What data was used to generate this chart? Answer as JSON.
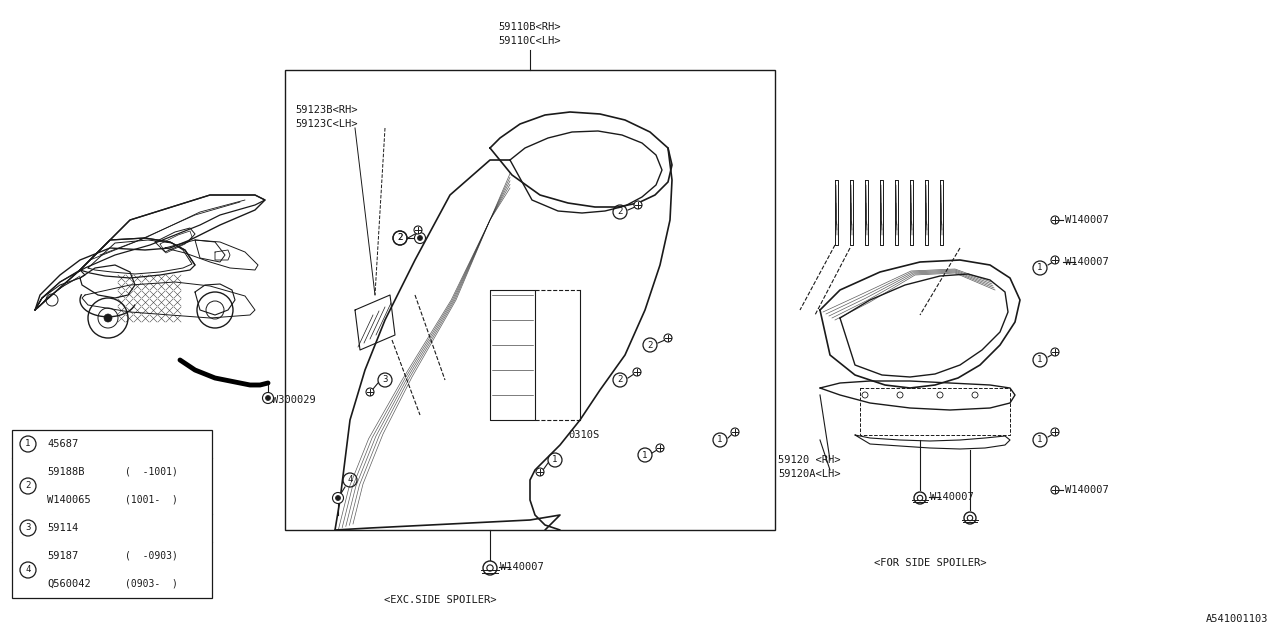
{
  "bg_color": "#ffffff",
  "line_color": "#1a1a1a",
  "diagram_id": "A541001103",
  "parts_table": [
    {
      "num": 1,
      "parts": [
        {
          "pn": "45687",
          "note": ""
        }
      ]
    },
    {
      "num": 2,
      "parts": [
        {
          "pn": "59188B",
          "note": "( -1001)"
        },
        {
          "pn": "W140065",
          "note": "(1001-  )"
        }
      ]
    },
    {
      "num": 3,
      "parts": [
        {
          "pn": "59114",
          "note": ""
        }
      ]
    },
    {
      "num": 4,
      "parts": [
        {
          "pn": "59187",
          "note": "( -0903)"
        },
        {
          "pn": "Q560042",
          "note": "(0903- )"
        }
      ]
    }
  ],
  "top_label_line1": "59110B<RH>",
  "top_label_line2": "59110C<LH>",
  "label_59123B": "59123B<RH>",
  "label_59123C": "59123C<LH>",
  "label_59120": "59120 <RH>",
  "label_59120A": "59120A<LH>",
  "label_W300029": "W300029",
  "label_W140007": "W140007",
  "label_0310S": "0310S",
  "label_exc": "<EXC.SIDE SPOILER>",
  "label_for": "<FOR SIDE SPOILER>",
  "fs": 7.5,
  "fs_med": 8.5
}
